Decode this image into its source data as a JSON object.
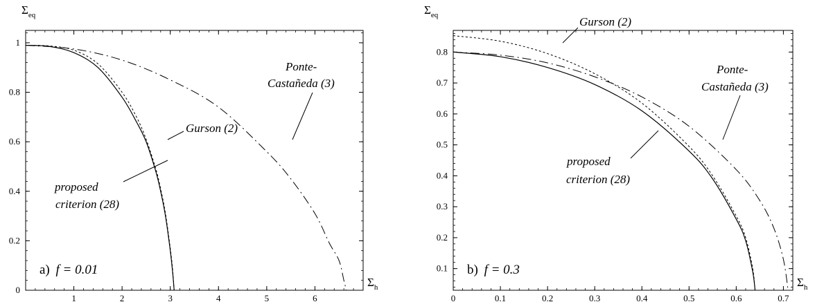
{
  "chart_data": [
    {
      "type": "line",
      "panel_label": "a)",
      "panel_param": "f = 0.01",
      "y_axis_symbol": "Σ",
      "y_axis_subscript": "eq",
      "x_axis_symbol": "Σ",
      "x_axis_subscript": "h",
      "xlim": [
        0,
        7.0
      ],
      "ylim": [
        0,
        1.05
      ],
      "x_ticks": [
        "1",
        "2",
        "3",
        "4",
        "5",
        "6"
      ],
      "y_ticks": [
        "0",
        "0.2",
        "0.4",
        "0.6",
        "0.8",
        "1"
      ],
      "grid": false,
      "series": [
        {
          "name": "proposed criterion (28)",
          "style": "solid",
          "x": [
            0,
            0.5,
            1.0,
            1.5,
            2.0,
            2.3,
            2.5,
            2.7,
            2.8,
            2.9,
            3.0,
            3.05,
            3.08
          ],
          "y": [
            0.99,
            0.985,
            0.96,
            0.9,
            0.78,
            0.68,
            0.6,
            0.48,
            0.4,
            0.3,
            0.16,
            0.07,
            0
          ]
        },
        {
          "name": "Gurson (2)",
          "style": "short-dash",
          "x": [
            0,
            0.5,
            1.0,
            1.5,
            2.0,
            2.3,
            2.5,
            2.7,
            2.8,
            2.9,
            3.0,
            3.05,
            3.08
          ],
          "y": [
            0.99,
            0.987,
            0.97,
            0.915,
            0.8,
            0.7,
            0.61,
            0.49,
            0.41,
            0.31,
            0.17,
            0.08,
            0
          ]
        },
        {
          "name": "Ponte-Castañeda (3)",
          "style": "dash-dot",
          "x": [
            0,
            1.0,
            2.0,
            3.0,
            4.0,
            5.0,
            5.5,
            6.0,
            6.3,
            6.5,
            6.6,
            6.65
          ],
          "y": [
            0.99,
            0.975,
            0.93,
            0.85,
            0.74,
            0.56,
            0.45,
            0.31,
            0.19,
            0.12,
            0.04,
            0
          ]
        }
      ],
      "annotations": {
        "gurson": "Gurson (2)",
        "ponte_line1": "Ponte-",
        "ponte_line2": "Castañeda (3)",
        "proposed_line1": "proposed",
        "proposed_line2": "criterion (28)"
      }
    },
    {
      "type": "line",
      "panel_label": "b)",
      "panel_param": "f = 0.3",
      "y_axis_symbol": "Σ",
      "y_axis_subscript": "eq",
      "x_axis_symbol": "Σ",
      "x_axis_subscript": "h",
      "xlim": [
        0,
        0.72
      ],
      "ylim": [
        0.03,
        0.87
      ],
      "x_ticks": [
        "0",
        "0.1",
        "0.2",
        "0.3",
        "0.4",
        "0.5",
        "0.6",
        "0.7"
      ],
      "y_ticks": [
        "0.1",
        "0.2",
        "0.3",
        "0.4",
        "0.5",
        "0.6",
        "0.7",
        "0.8"
      ],
      "grid": false,
      "series": [
        {
          "name": "proposed criterion (28)",
          "style": "solid",
          "x": [
            0,
            0.1,
            0.2,
            0.3,
            0.4,
            0.5,
            0.55,
            0.6,
            0.62,
            0.635,
            0.64
          ],
          "y": [
            0.8,
            0.785,
            0.75,
            0.695,
            0.61,
            0.48,
            0.39,
            0.26,
            0.19,
            0.09,
            0.03
          ]
        },
        {
          "name": "Gurson (2)",
          "style": "short-dash",
          "x": [
            0,
            0.1,
            0.2,
            0.3,
            0.4,
            0.5,
            0.55,
            0.6,
            0.62,
            0.635,
            0.64
          ],
          "y": [
            0.853,
            0.835,
            0.795,
            0.73,
            0.635,
            0.495,
            0.4,
            0.27,
            0.2,
            0.1,
            0.03
          ]
        },
        {
          "name": "Ponte-Castañeda (3)",
          "style": "dash-dot",
          "x": [
            0,
            0.1,
            0.2,
            0.3,
            0.4,
            0.5,
            0.6,
            0.65,
            0.68,
            0.7,
            0.71
          ],
          "y": [
            0.8,
            0.79,
            0.765,
            0.72,
            0.655,
            0.56,
            0.42,
            0.32,
            0.23,
            0.13,
            0.03
          ]
        }
      ],
      "annotations": {
        "gurson": "Gurson (2)",
        "ponte_line1": "Ponte-",
        "ponte_line2": "Castañeda (3)",
        "proposed_line1": "proposed",
        "proposed_line2": "criterion (28)"
      }
    }
  ]
}
